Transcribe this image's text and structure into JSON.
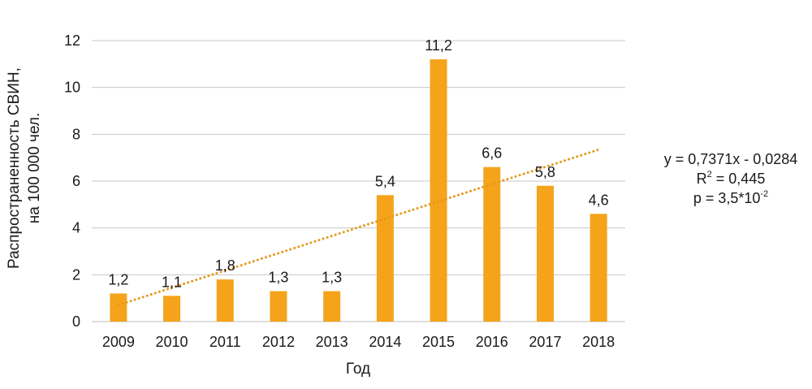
{
  "chart_data": {
    "type": "bar",
    "categories": [
      "2009",
      "2010",
      "2011",
      "2012",
      "2013",
      "2014",
      "2015",
      "2016",
      "2017",
      "2018"
    ],
    "values": [
      1.2,
      1.1,
      1.8,
      1.3,
      1.3,
      5.4,
      11.2,
      6.6,
      5.8,
      4.6
    ],
    "data_labels": [
      "1,2",
      "1,1",
      "1,8",
      "1,3",
      "1,3",
      "5,4",
      "11,2",
      "6,6",
      "5,8",
      "4,6"
    ],
    "xlabel": "Год",
    "ylabel_line1": "Распространенность СВИН,",
    "ylabel_line2": "на 100 000 чел.",
    "ylim": [
      0,
      12
    ],
    "yticks": [
      0,
      2,
      4,
      6,
      8,
      10,
      12
    ],
    "grid": true,
    "bar_color": "#f5a31a",
    "trendline": {
      "type": "linear",
      "slope": 0.7371,
      "intercept": -0.0284,
      "style": "dotted",
      "color": "#e39a1c"
    },
    "annotation": {
      "equation": "y = 0,7371x - 0,0284",
      "r_squared_prefix": "R",
      "r_squared_sup": "2",
      "r_squared_suffix": " = 0,445",
      "p_prefix": "p = 3,5*10",
      "p_sup": "-2"
    }
  }
}
